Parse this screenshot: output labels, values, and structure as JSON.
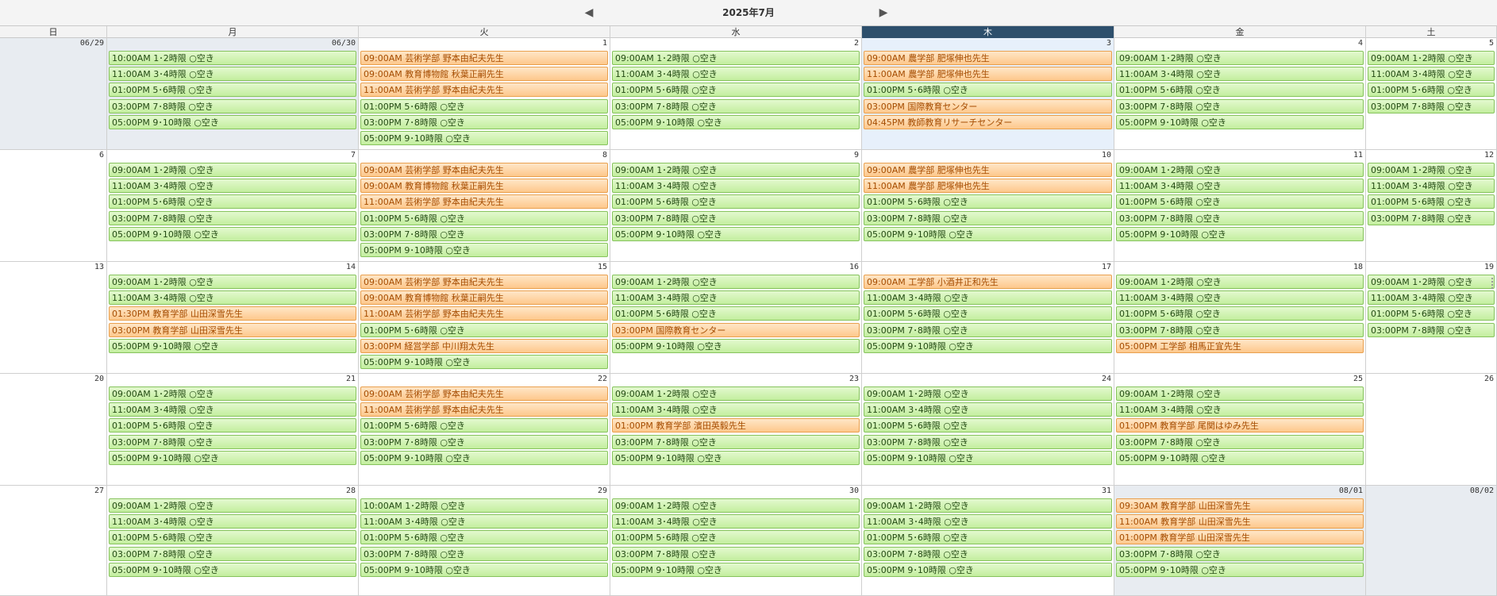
{
  "header": {
    "title": "2025年7月",
    "prev_icon": "◀",
    "next_icon": "▶"
  },
  "weekdays": [
    "日",
    "月",
    "火",
    "水",
    "木",
    "金",
    "土"
  ],
  "today_column": 4,
  "colors": {
    "open": "#c3ee9e",
    "booked": "#fdc88c",
    "today_header": "#2d4f6c",
    "other_month": "#e8ecf1"
  },
  "weeks": [
    {
      "days": [
        {
          "label": "06/29",
          "other": true,
          "events": []
        },
        {
          "label": "06/30",
          "other": true,
          "events": [
            {
              "text": "10:00AM 1･2時限 ○空き",
              "type": "open"
            },
            {
              "text": "11:00AM 3･4時限 ○空き",
              "type": "open"
            },
            {
              "text": "01:00PM 5･6時限 ○空き",
              "type": "open"
            },
            {
              "text": "03:00PM 7･8時限 ○空き",
              "type": "open"
            },
            {
              "text": "05:00PM 9･10時限 ○空き",
              "type": "open"
            }
          ]
        },
        {
          "label": "1",
          "events": [
            {
              "text": "09:00AM 芸術学部 野本由紀夫先生",
              "type": "booked"
            },
            {
              "text": "09:00AM 教育博物館 秋葉正嗣先生",
              "type": "booked"
            },
            {
              "text": "11:00AM 芸術学部 野本由紀夫先生",
              "type": "booked"
            },
            {
              "text": "01:00PM 5･6時限 ○空き",
              "type": "open"
            },
            {
              "text": "03:00PM 7･8時限 ○空き",
              "type": "open"
            },
            {
              "text": "05:00PM 9･10時限 ○空き",
              "type": "open"
            }
          ]
        },
        {
          "label": "2",
          "events": [
            {
              "text": "09:00AM 1･2時限 ○空き",
              "type": "open"
            },
            {
              "text": "11:00AM 3･4時限 ○空き",
              "type": "open"
            },
            {
              "text": "01:00PM 5･6時限 ○空き",
              "type": "open"
            },
            {
              "text": "03:00PM 7･8時限 ○空き",
              "type": "open"
            },
            {
              "text": "05:00PM 9･10時限 ○空き",
              "type": "open"
            }
          ]
        },
        {
          "label": "3",
          "today": true,
          "events": [
            {
              "text": "09:00AM 農学部 肥塚伸也先生",
              "type": "booked"
            },
            {
              "text": "11:00AM 農学部 肥塚伸也先生",
              "type": "booked"
            },
            {
              "text": "01:00PM 5･6時限 ○空き",
              "type": "open"
            },
            {
              "text": "03:00PM 国際教育センター",
              "type": "booked"
            },
            {
              "text": "04:45PM 教師教育リサーチセンター",
              "type": "booked"
            }
          ]
        },
        {
          "label": "4",
          "events": [
            {
              "text": "09:00AM 1･2時限 ○空き",
              "type": "open"
            },
            {
              "text": "11:00AM 3･4時限 ○空き",
              "type": "open"
            },
            {
              "text": "01:00PM 5･6時限 ○空き",
              "type": "open"
            },
            {
              "text": "03:00PM 7･8時限 ○空き",
              "type": "open"
            },
            {
              "text": "05:00PM 9･10時限 ○空き",
              "type": "open"
            }
          ]
        },
        {
          "label": "5",
          "events": [
            {
              "text": "09:00AM 1･2時限 ○空き",
              "type": "open"
            },
            {
              "text": "11:00AM 3･4時限 ○空き",
              "type": "open"
            },
            {
              "text": "01:00PM 5･6時限 ○空き",
              "type": "open"
            },
            {
              "text": "03:00PM 7･8時限 ○空き",
              "type": "open"
            }
          ]
        }
      ]
    },
    {
      "days": [
        {
          "label": "6",
          "events": []
        },
        {
          "label": "7",
          "events": [
            {
              "text": "09:00AM 1･2時限 ○空き",
              "type": "open"
            },
            {
              "text": "11:00AM 3･4時限 ○空き",
              "type": "open"
            },
            {
              "text": "01:00PM 5･6時限 ○空き",
              "type": "open"
            },
            {
              "text": "03:00PM 7･8時限 ○空き",
              "type": "open"
            },
            {
              "text": "05:00PM 9･10時限 ○空き",
              "type": "open"
            }
          ]
        },
        {
          "label": "8",
          "events": [
            {
              "text": "09:00AM 芸術学部 野本由紀夫先生",
              "type": "booked"
            },
            {
              "text": "09:00AM 教育博物館 秋葉正嗣先生",
              "type": "booked"
            },
            {
              "text": "11:00AM 芸術学部 野本由紀夫先生",
              "type": "booked"
            },
            {
              "text": "01:00PM 5･6時限 ○空き",
              "type": "open"
            },
            {
              "text": "03:00PM 7･8時限 ○空き",
              "type": "open"
            },
            {
              "text": "05:00PM 9･10時限 ○空き",
              "type": "open"
            }
          ]
        },
        {
          "label": "9",
          "events": [
            {
              "text": "09:00AM 1･2時限 ○空き",
              "type": "open"
            },
            {
              "text": "11:00AM 3･4時限 ○空き",
              "type": "open"
            },
            {
              "text": "01:00PM 5･6時限 ○空き",
              "type": "open"
            },
            {
              "text": "03:00PM 7･8時限 ○空き",
              "type": "open"
            },
            {
              "text": "05:00PM 9･10時限 ○空き",
              "type": "open"
            }
          ]
        },
        {
          "label": "10",
          "events": [
            {
              "text": "09:00AM 農学部 肥塚伸也先生",
              "type": "booked"
            },
            {
              "text": "11:00AM 農学部 肥塚伸也先生",
              "type": "booked"
            },
            {
              "text": "01:00PM 5･6時限 ○空き",
              "type": "open"
            },
            {
              "text": "03:00PM 7･8時限 ○空き",
              "type": "open"
            },
            {
              "text": "05:00PM 9･10時限 ○空き",
              "type": "open"
            }
          ]
        },
        {
          "label": "11",
          "events": [
            {
              "text": "09:00AM 1･2時限 ○空き",
              "type": "open"
            },
            {
              "text": "11:00AM 3･4時限 ○空き",
              "type": "open"
            },
            {
              "text": "01:00PM 5･6時限 ○空き",
              "type": "open"
            },
            {
              "text": "03:00PM 7･8時限 ○空き",
              "type": "open"
            },
            {
              "text": "05:00PM 9･10時限 ○空き",
              "type": "open"
            }
          ]
        },
        {
          "label": "12",
          "events": [
            {
              "text": "09:00AM 1･2時限 ○空き",
              "type": "open"
            },
            {
              "text": "11:00AM 3･4時限 ○空き",
              "type": "open"
            },
            {
              "text": "01:00PM 5･6時限 ○空き",
              "type": "open"
            },
            {
              "text": "03:00PM 7･8時限 ○空き",
              "type": "open"
            }
          ]
        }
      ]
    },
    {
      "days": [
        {
          "label": "13",
          "events": []
        },
        {
          "label": "14",
          "events": [
            {
              "text": "09:00AM 1･2時限 ○空き",
              "type": "open"
            },
            {
              "text": "11:00AM 3･4時限 ○空き",
              "type": "open"
            },
            {
              "text": "01:30PM 教育学部 山田深雪先生",
              "type": "booked"
            },
            {
              "text": "03:00PM 教育学部 山田深雪先生",
              "type": "booked"
            },
            {
              "text": "05:00PM 9･10時限 ○空き",
              "type": "open"
            }
          ]
        },
        {
          "label": "15",
          "events": [
            {
              "text": "09:00AM 芸術学部 野本由紀夫先生",
              "type": "booked"
            },
            {
              "text": "09:00AM 教育博物館 秋葉正嗣先生",
              "type": "booked"
            },
            {
              "text": "11:00AM 芸術学部 野本由紀夫先生",
              "type": "booked"
            },
            {
              "text": "01:00PM 5･6時限 ○空き",
              "type": "open"
            },
            {
              "text": "03:00PM 経営学部 中川翔太先生",
              "type": "booked"
            },
            {
              "text": "05:00PM 9･10時限 ○空き",
              "type": "open"
            }
          ]
        },
        {
          "label": "16",
          "events": [
            {
              "text": "09:00AM 1･2時限 ○空き",
              "type": "open"
            },
            {
              "text": "11:00AM 3･4時限 ○空き",
              "type": "open"
            },
            {
              "text": "01:00PM 5･6時限 ○空き",
              "type": "open"
            },
            {
              "text": "03:00PM 国際教育センター",
              "type": "booked"
            },
            {
              "text": "05:00PM 9･10時限 ○空き",
              "type": "open"
            }
          ]
        },
        {
          "label": "17",
          "events": [
            {
              "text": "09:00AM 工学部 小酒井正和先生",
              "type": "booked"
            },
            {
              "text": "11:00AM 3･4時限 ○空き",
              "type": "open"
            },
            {
              "text": "01:00PM 5･6時限 ○空き",
              "type": "open"
            },
            {
              "text": "03:00PM 7･8時限 ○空き",
              "type": "open"
            },
            {
              "text": "05:00PM 9･10時限 ○空き",
              "type": "open"
            }
          ]
        },
        {
          "label": "18",
          "events": [
            {
              "text": "09:00AM 1･2時限 ○空き",
              "type": "open"
            },
            {
              "text": "11:00AM 3･4時限 ○空き",
              "type": "open"
            },
            {
              "text": "01:00PM 5･6時限 ○空き",
              "type": "open"
            },
            {
              "text": "03:00PM 7･8時限 ○空き",
              "type": "open"
            },
            {
              "text": "05:00PM 工学部 相馬正宜先生",
              "type": "booked"
            }
          ]
        },
        {
          "label": "19",
          "events": [
            {
              "text": "09:00AM 1･2時限 ○空き",
              "type": "open"
            },
            {
              "text": "11:00AM 3･4時限 ○空き",
              "type": "open"
            },
            {
              "text": "01:00PM 5･6時限 ○空き",
              "type": "open"
            },
            {
              "text": "03:00PM 7･8時限 ○空き",
              "type": "open"
            }
          ]
        }
      ]
    },
    {
      "days": [
        {
          "label": "20",
          "events": []
        },
        {
          "label": "21",
          "events": [
            {
              "text": "09:00AM 1･2時限 ○空き",
              "type": "open"
            },
            {
              "text": "11:00AM 3･4時限 ○空き",
              "type": "open"
            },
            {
              "text": "01:00PM 5･6時限 ○空き",
              "type": "open"
            },
            {
              "text": "03:00PM 7･8時限 ○空き",
              "type": "open"
            },
            {
              "text": "05:00PM 9･10時限 ○空き",
              "type": "open"
            }
          ]
        },
        {
          "label": "22",
          "events": [
            {
              "text": "09:00AM 芸術学部 野本由紀夫先生",
              "type": "booked"
            },
            {
              "text": "11:00AM 芸術学部 野本由紀夫先生",
              "type": "booked"
            },
            {
              "text": "01:00PM 5･6時限 ○空き",
              "type": "open"
            },
            {
              "text": "03:00PM 7･8時限 ○空き",
              "type": "open"
            },
            {
              "text": "05:00PM 9･10時限 ○空き",
              "type": "open"
            }
          ]
        },
        {
          "label": "23",
          "events": [
            {
              "text": "09:00AM 1･2時限 ○空き",
              "type": "open"
            },
            {
              "text": "11:00AM 3･4時限 ○空き",
              "type": "open"
            },
            {
              "text": "01:00PM 教育学部 濱田英毅先生",
              "type": "booked"
            },
            {
              "text": "03:00PM 7･8時限 ○空き",
              "type": "open"
            },
            {
              "text": "05:00PM 9･10時限 ○空き",
              "type": "open"
            }
          ]
        },
        {
          "label": "24",
          "events": [
            {
              "text": "09:00AM 1･2時限 ○空き",
              "type": "open"
            },
            {
              "text": "11:00AM 3･4時限 ○空き",
              "type": "open"
            },
            {
              "text": "01:00PM 5･6時限 ○空き",
              "type": "open"
            },
            {
              "text": "03:00PM 7･8時限 ○空き",
              "type": "open"
            },
            {
              "text": "05:00PM 9･10時限 ○空き",
              "type": "open"
            }
          ]
        },
        {
          "label": "25",
          "events": [
            {
              "text": "09:00AM 1･2時限 ○空き",
              "type": "open"
            },
            {
              "text": "11:00AM 3･4時限 ○空き",
              "type": "open"
            },
            {
              "text": "01:00PM 教育学部 尾関はゆみ先生",
              "type": "booked"
            },
            {
              "text": "03:00PM 7･8時限 ○空き",
              "type": "open"
            },
            {
              "text": "05:00PM 9･10時限 ○空き",
              "type": "open"
            }
          ]
        },
        {
          "label": "26",
          "events": []
        }
      ]
    },
    {
      "days": [
        {
          "label": "27",
          "events": []
        },
        {
          "label": "28",
          "events": [
            {
              "text": "09:00AM 1･2時限 ○空き",
              "type": "open"
            },
            {
              "text": "11:00AM 3･4時限 ○空き",
              "type": "open"
            },
            {
              "text": "01:00PM 5･6時限 ○空き",
              "type": "open"
            },
            {
              "text": "03:00PM 7･8時限 ○空き",
              "type": "open"
            },
            {
              "text": "05:00PM 9･10時限 ○空き",
              "type": "open"
            }
          ]
        },
        {
          "label": "29",
          "events": [
            {
              "text": "10:00AM 1･2時限 ○空き",
              "type": "open"
            },
            {
              "text": "11:00AM 3･4時限 ○空き",
              "type": "open"
            },
            {
              "text": "01:00PM 5･6時限 ○空き",
              "type": "open"
            },
            {
              "text": "03:00PM 7･8時限 ○空き",
              "type": "open"
            },
            {
              "text": "05:00PM 9･10時限 ○空き",
              "type": "open"
            }
          ]
        },
        {
          "label": "30",
          "events": [
            {
              "text": "09:00AM 1･2時限 ○空き",
              "type": "open"
            },
            {
              "text": "11:00AM 3･4時限 ○空き",
              "type": "open"
            },
            {
              "text": "01:00PM 5･6時限 ○空き",
              "type": "open"
            },
            {
              "text": "03:00PM 7･8時限 ○空き",
              "type": "open"
            },
            {
              "text": "05:00PM 9･10時限 ○空き",
              "type": "open"
            }
          ]
        },
        {
          "label": "31",
          "events": [
            {
              "text": "09:00AM 1･2時限 ○空き",
              "type": "open"
            },
            {
              "text": "11:00AM 3･4時限 ○空き",
              "type": "open"
            },
            {
              "text": "01:00PM 5･6時限 ○空き",
              "type": "open"
            },
            {
              "text": "03:00PM 7･8時限 ○空き",
              "type": "open"
            },
            {
              "text": "05:00PM 9･10時限 ○空き",
              "type": "open"
            }
          ]
        },
        {
          "label": "08/01",
          "other": true,
          "events": [
            {
              "text": "09:30AM 教育学部 山田深雪先生",
              "type": "booked"
            },
            {
              "text": "11:00AM 教育学部 山田深雪先生",
              "type": "booked"
            },
            {
              "text": "01:00PM 教育学部 山田深雪先生",
              "type": "booked"
            },
            {
              "text": "03:00PM 7･8時限 ○空き",
              "type": "open"
            },
            {
              "text": "05:00PM 9･10時限 ○空き",
              "type": "open"
            }
          ]
        },
        {
          "label": "08/02",
          "other": true,
          "events": []
        }
      ]
    }
  ]
}
